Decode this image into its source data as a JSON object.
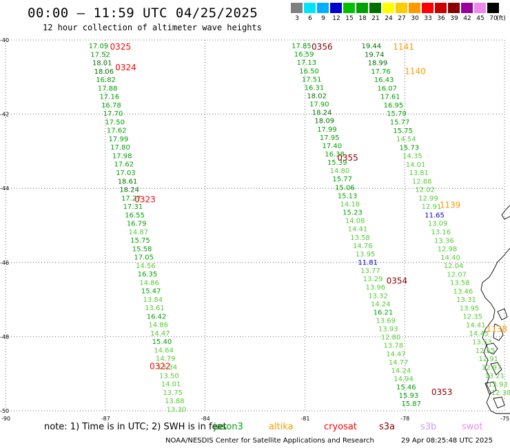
{
  "header": {
    "title": "00:00 – 11:59 UTC 04/25/2025",
    "subtitle": "12 hour collection of altimeter wave heights"
  },
  "legend": {
    "unit": "(ft)",
    "bins": [
      {
        "label": "3",
        "color": "#808080"
      },
      {
        "label": "6",
        "color": "#00e5ff"
      },
      {
        "label": "9",
        "color": "#00b0ff"
      },
      {
        "label": "12",
        "color": "#0000cc"
      },
      {
        "label": "15",
        "color": "#00c000"
      },
      {
        "label": "18",
        "color": "#00a000"
      },
      {
        "label": "21",
        "color": "#007000"
      },
      {
        "label": "24",
        "color": "#ffff00"
      },
      {
        "label": "27",
        "color": "#ffcc00"
      },
      {
        "label": "30",
        "color": "#ff9900"
      },
      {
        "label": "33",
        "color": "#ff0000"
      },
      {
        "label": "36",
        "color": "#cc0000"
      },
      {
        "label": "39",
        "color": "#880000"
      },
      {
        "label": "42",
        "color": "#990099"
      },
      {
        "label": "45",
        "color": "#ee88ee"
      },
      {
        "label": "70",
        "color": "#000000"
      }
    ]
  },
  "axes": {
    "lat_labels": [
      "-40",
      "-42",
      "-44",
      "-46",
      "-48",
      "-50"
    ],
    "lon_labels": [
      "-90",
      "-87",
      "-84",
      "-81",
      "-78",
      "-75"
    ],
    "lon_range": [
      -90,
      -75
    ],
    "lat_range": [
      -50,
      -40
    ],
    "grid": "dotted"
  },
  "tracks": [
    {
      "labels": [
        {
          "text": "0325",
          "color": "#ff0000",
          "lon": -86.86,
          "lat": -40.19
        },
        {
          "text": "0324",
          "color": "#ff0000",
          "lon": -86.7,
          "lat": -40.74
        },
        {
          "text": "0323",
          "color": "#ff0000",
          "lon": -86.12,
          "lat": -44.3
        },
        {
          "text": "0322",
          "color": "#ff0000",
          "lon": -85.67,
          "lat": -48.8
        }
      ],
      "start": [
        -87.5,
        -40.15
      ],
      "end": [
        -85.16,
        -49.95
      ],
      "values": [
        "17.09",
        "17.52",
        "18.01",
        "18.06",
        "16.82",
        "17.88",
        "17.16",
        "16.78",
        "17.70",
        "17.50",
        "17.62",
        "17.99",
        "17.80",
        "17.98",
        "17.62",
        "17.03",
        "18.61",
        "18.24",
        "17.27",
        "17.31",
        "16.55",
        "16.79",
        "14.87",
        "15.75",
        "15.58",
        "17.05",
        "14.56",
        "16.35",
        "14.86",
        "15.47",
        "13.84",
        "13.61",
        "16.42",
        "14.86",
        "14.47",
        "15.40",
        "14.64",
        "14.79",
        "13.34",
        "13.50",
        "14.01",
        "13.75",
        "13.88",
        "13.30"
      ]
    },
    {
      "labels": [
        {
          "text": "0356",
          "color": "#880000",
          "lon": -80.8,
          "lat": -40.19
        },
        {
          "text": "0355",
          "color": "#880000",
          "lon": -80.03,
          "lat": -43.18
        },
        {
          "text": "0354",
          "color": "#880000",
          "lon": -78.55,
          "lat": -46.5
        },
        {
          "text": "0353",
          "color": "#880000",
          "lon": -77.2,
          "lat": -49.5
        }
      ],
      "start": [
        -81.4,
        -40.15
      ],
      "end": [
        -78.1,
        -49.8
      ],
      "values": [
        "17.85",
        "16.59",
        "17.13",
        "16.50",
        "17.51",
        "16.31",
        "18.02",
        "17.90",
        "18.24",
        "18.09",
        "17.99",
        "17.95",
        "17.40",
        "16.38",
        "15.39",
        "14.80",
        "15.77",
        "15.06",
        "15.13",
        "14.18",
        "15.23",
        "14.08",
        "14.41",
        "13.58",
        "14.76",
        "13.95",
        "11.81",
        "13.77",
        "13.29",
        "13.96",
        "13.32",
        "14.24",
        "16.21",
        "13.69",
        "13.93",
        "12.80",
        "13.78",
        "14.47",
        "14.77",
        "14.24",
        "14.94",
        "15.46",
        "15.93",
        "15.87"
      ]
    },
    {
      "labels": [
        {
          "text": "1141",
          "color": "#ff9900",
          "lon": -78.35,
          "lat": -40.19
        },
        {
          "text": "1140",
          "color": "#ff9900",
          "lon": -78.0,
          "lat": -40.85
        },
        {
          "text": "1139",
          "color": "#ff9900",
          "lon": -76.95,
          "lat": -44.45
        },
        {
          "text": "1138",
          "color": "#ff9900",
          "lon": -75.55,
          "lat": -47.8
        }
      ],
      "start": [
        -79.3,
        -40.15
      ],
      "end": [
        -75.4,
        -49.5
      ],
      "values": [
        "19.44",
        "19.74",
        "18.99",
        "17.76",
        "16.43",
        "16.07",
        "17.61",
        "16.95",
        "15.79",
        "15.77",
        "15.75",
        "14.54",
        "15.73",
        "14.35",
        "14.01",
        "13.81",
        "12.88",
        "12.02",
        "12.99",
        "12.91",
        "11.65",
        "13.09",
        "13.16",
        "13.36",
        "12.98",
        "14.40",
        "12.04",
        "12.07",
        "13.58",
        "13.46",
        "13.31",
        "13.95",
        "12.35",
        "14.41",
        "14.45",
        "13.53",
        "12.55",
        "12.91",
        "12.97",
        "13.21",
        "13.93",
        "12.38"
      ]
    }
  ],
  "footer": {
    "note": "note:  1) Time is in UTC;  2) SWH is in feet",
    "satellites": [
      {
        "name": "jason3",
        "color": "#00a000"
      },
      {
        "name": "altika",
        "color": "#ff9900"
      },
      {
        "name": "cryosat",
        "color": "#ff0000"
      },
      {
        "name": "s3a",
        "color": "#880000"
      },
      {
        "name": "s3b",
        "color": "#cc99ff"
      },
      {
        "name": "swot",
        "color": "#ee88ee"
      }
    ],
    "credit": "NOAA/NESDIS Center for Satellite Applications and Research",
    "generated": "29 Apr 08:25:48 UTC 2025"
  }
}
